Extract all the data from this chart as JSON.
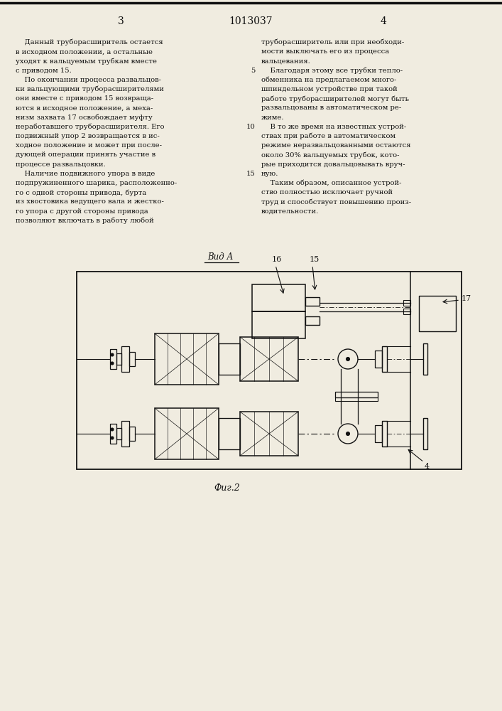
{
  "page_number_left": "3",
  "page_number_center": "1013037",
  "page_number_right": "4",
  "bg_color": "#f0ece0",
  "text_color": "#111111",
  "left_col": [
    "    Данный труборасширитель остается",
    "в исходном положении, а остальные",
    "уходят к вальцуемым трубкам вместе",
    "с приводом 15.",
    "    По окончании процесса развальцов-",
    "ки вальцующими труборасширителями",
    "они вместе с приводом 15 возвраща-",
    "ются в исходное положение, а меха-",
    "низм захвата 17 освобождает муфту",
    "неработавшего труборасширителя. Его",
    "подвижный упор 2 возвращается в ис-",
    "ходное положение и может при после-",
    "дующей операции принять участие в",
    "процессе развальцовки.",
    "    Наличие подвижного упора в виде",
    "подпружиненного шарика, расположенно-",
    "го с одной стороны привода, бурта",
    "из хвостовика ведущего вала и жестко-",
    "го упора с другой стороны привода",
    "позволяют включать в работу любой"
  ],
  "right_col": [
    "труборасширитель или при необходи-",
    "мости выключать его из процесса",
    "вальцевания.",
    "    Благодаря этому все трубки тепло-",
    "обменника на предлагаемом много-",
    "шпиндельном устройстве при такой",
    "работе труборасширителей могут быть",
    "развальцованы в автоматическом ре-",
    "жиме.",
    "    В то же время на известных устрой-",
    "ствах при работе в автоматическом",
    "режиме неразвальцованными остаются",
    "около 30% вальцуемых трубок, кото-",
    "рые приходится довальцовывать вруч-",
    "ную.",
    "    Таким образом, описанное устрой-",
    "ство полностью исключает ручной",
    "труд и способствует повышению произ-",
    "водительности."
  ],
  "gutter_numbers": {
    "3": "5",
    "9": "10",
    "14": "15"
  },
  "view_label": "Вид А",
  "fig_label": "Фиг.2"
}
